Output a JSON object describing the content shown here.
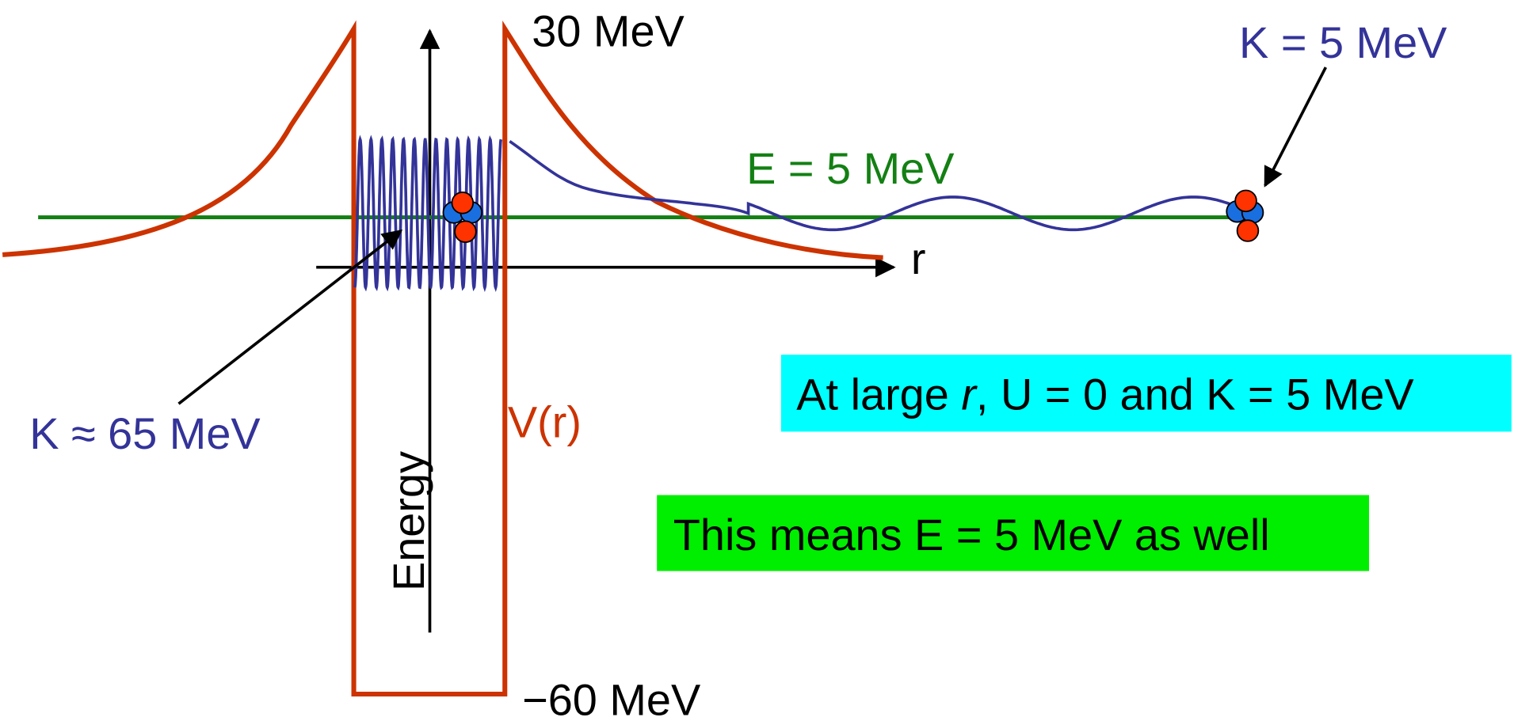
{
  "labels": {
    "top_energy": "30 MeV",
    "bottom_energy": "−60 MeV",
    "outside_kinetic": "K = 5 MeV",
    "total_energy": "E = 5 MeV",
    "r_axis": "r",
    "inside_kinetic": "K ≈ 65 MeV",
    "potential": "V(r)",
    "energy_axis": "Energy"
  },
  "notes": {
    "large_r": {
      "before": "At large ",
      "italic": "r",
      "after": ", U = 0 and K = 5 MeV"
    },
    "conclusion": "This means E = 5 MeV as well"
  }
}
